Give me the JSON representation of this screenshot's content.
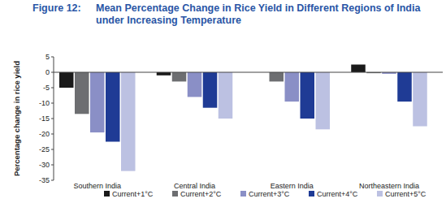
{
  "chart_data": {
    "type": "bar",
    "annotations": [
      "Figure 12:"
    ],
    "title": [
      "Mean Percentage Change in Rice Yield in Different Regions of India",
      "under Increasing Temperature"
    ],
    "y_label": "Percentage change in rice yield",
    "categories": [
      "Southern India",
      "Central India",
      "Eastern India",
      "Northeastern India"
    ],
    "series": [
      {
        "name": "Current+1°C",
        "color": "#1a1a1a",
        "values": [
          -5,
          -1,
          0,
          2.5
        ]
      },
      {
        "name": "Current+2°C",
        "color": "#6d6e71",
        "values": [
          -13.5,
          -3,
          -3,
          -0.3
        ]
      },
      {
        "name": "Current+3°C",
        "color": "#8a8fc6",
        "values": [
          -19.5,
          -8,
          -9.5,
          -0.5
        ]
      },
      {
        "name": "Current+4°C",
        "color": "#1f3b95",
        "values": [
          -22.5,
          -11.5,
          -15,
          -9.5
        ]
      },
      {
        "name": "Current+5°C",
        "color": "#bcc1e2",
        "values": [
          -32,
          -15,
          -18.5,
          -17.5
        ]
      }
    ],
    "ylim": [
      -35,
      5
    ],
    "yticks": [
      5,
      0,
      -5,
      -10,
      -15,
      -20,
      -25,
      -30,
      -35
    ],
    "grid": false,
    "legend": "bottom"
  }
}
